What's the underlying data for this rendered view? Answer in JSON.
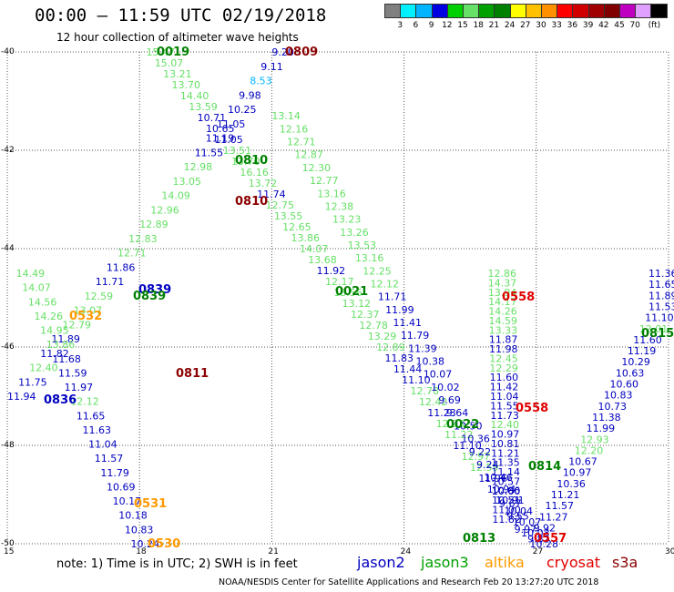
{
  "title": "00:00 – 11:59 UTC 02/19/2018",
  "subtitle": "12 hour collection of altimeter wave heights",
  "legend": {
    "colors": [
      "#808080",
      "#00f0ff",
      "#00b4ff",
      "#0000e0",
      "#00d000",
      "#66e066",
      "#00a000",
      "#008000",
      "#ffff00",
      "#ffc000",
      "#ff9000",
      "#ff0000",
      "#d00000",
      "#a00000",
      "#800000",
      "#c000c0",
      "#e0a0ff",
      "#000000"
    ],
    "labels": [
      "3",
      "6",
      "9",
      "12",
      "15",
      "18",
      "21",
      "24",
      "27",
      "30",
      "33",
      "36",
      "39",
      "42",
      "45",
      "70",
      "(ft)"
    ]
  },
  "axes": {
    "lon_labels": [
      "15",
      "18",
      "21",
      "24",
      "27",
      "30"
    ],
    "lat_labels": [
      "-40",
      "-42",
      "-44",
      "-46",
      "-48",
      "-50"
    ]
  },
  "note": "note: 1) Time is in UTC; 2) SWH is in feet",
  "satellites": [
    {
      "name": "jason2",
      "color": "#0000c0"
    },
    {
      "name": "jason3",
      "color": "#00a000"
    },
    {
      "name": "altika",
      "color": "#ff9900"
    },
    {
      "name": "cryosat",
      "color": "#e00000"
    },
    {
      "name": "s3a",
      "color": "#8b0000"
    }
  ],
  "footer": "NOAA/NESDIS Center for Satellite Applications and Research   Feb 20 13:27:20 UTC 2018",
  "time_labels": [
    {
      "t": "0019",
      "c": "#008000"
    },
    {
      "t": "0809",
      "c": "#8b0000"
    },
    {
      "t": "0810",
      "c": "#008000"
    },
    {
      "t": "0810",
      "c": "#8b0000"
    },
    {
      "t": "0021",
      "c": "#008000"
    },
    {
      "t": "0558",
      "c": "#e00000"
    },
    {
      "t": "0532",
      "c": "#ff9900"
    },
    {
      "t": "0839",
      "c": "#0000c0"
    },
    {
      "t": "0839",
      "c": "#008000"
    },
    {
      "t": "0811",
      "c": "#8b0000"
    },
    {
      "t": "0836",
      "c": "#0000c0"
    },
    {
      "t": "0022",
      "c": "#008000"
    },
    {
      "t": "0558",
      "c": "#e00000"
    },
    {
      "t": "0815",
      "c": "#008000"
    },
    {
      "t": "0814",
      "c": "#008000"
    },
    {
      "t": "0531",
      "c": "#ff9900"
    },
    {
      "t": "0530",
      "c": "#ff9900"
    },
    {
      "t": "0813",
      "c": "#008000"
    },
    {
      "t": "0557",
      "c": "#e00000"
    }
  ],
  "map_data": {
    "lon_range": [
      15,
      30
    ],
    "lat_range": [
      -50,
      -40
    ],
    "tracks": [
      {
        "name": "A",
        "start": [
          18.15,
          -40.0
        ],
        "end": [
          26.85,
          -50.0
        ],
        "values": [
          "15.47",
          "15.07",
          "13.21",
          "13.70",
          "14.40",
          "13.59",
          "10.71",
          "10.65",
          "11.05",
          "13.51",
          "13.70",
          "16.16",
          "13.72",
          "11.74",
          "12.75",
          "13.55",
          "12.65",
          "13.86",
          "14.07",
          "13.68",
          "11.92",
          "12.17",
          "13.56",
          "13.12",
          "12.37",
          "12.78",
          "13.29",
          "12.89",
          "11.83",
          "11.44",
          "11.10",
          "12.78",
          "12.42",
          "11.23",
          "12.23",
          "11.22",
          "11.10",
          "12.97",
          "12.59",
          "11.96",
          "10.94",
          "10.91",
          "10.04",
          "10.07",
          "10.03",
          "10.28"
        ],
        "colors": [
          "#66e066",
          "#66e066",
          "#66e066",
          "#66e066",
          "#66e066",
          "#66e066",
          "#0000c0",
          "#0000c0",
          "#0000c0",
          "#66e066",
          "#66e066",
          "#66e066",
          "#66e066",
          "#0000c0",
          "#66e066",
          "#66e066",
          "#66e066",
          "#66e066",
          "#66e066",
          "#66e066",
          "#0000c0",
          "#66e066",
          "#66e066",
          "#66e066",
          "#66e066",
          "#66e066",
          "#66e066",
          "#66e066",
          "#0000c0",
          "#0000c0",
          "#0000c0",
          "#66e066",
          "#66e066",
          "#0000c0",
          "#66e066",
          "#66e066",
          "#0000c0",
          "#66e066",
          "#66e066",
          "#0000c0",
          "#0000c0",
          "#0000c0",
          "#0000c0",
          "#0000c0",
          "#0000c0",
          "#0000c0"
        ]
      },
      {
        "name": "B",
        "start": [
          21.0,
          -40.0
        ],
        "end": [
          15.0,
          -47.0
        ],
        "values": [
          "9.20",
          "9.11",
          "8.53",
          "9.98",
          "10.25",
          "11.05",
          "11.19",
          "11.55",
          "12.98",
          "13.05",
          "14.09",
          "12.96",
          "12.89",
          "12.83",
          "12.71",
          "11.86",
          "11.71",
          "12.59",
          "13.07",
          "12.79",
          "11.89",
          "11.82",
          "12.40",
          "11.75",
          "11.94"
        ],
        "colors": [
          "#0000c0",
          "#0000c0",
          "#00b4ff",
          "#0000c0",
          "#0000c0",
          "#0000c0",
          "#0000c0",
          "#0000c0",
          "#66e066",
          "#66e066",
          "#66e066",
          "#66e066",
          "#66e066",
          "#66e066",
          "#66e066",
          "#0000c0",
          "#0000c0",
          "#66e066",
          "#66e066",
          "#66e066",
          "#0000c0",
          "#0000c0",
          "#66e066",
          "#0000c0",
          "#0000c0"
        ]
      },
      {
        "name": "C",
        "start": [
          21.0,
          -41.3
        ],
        "end": [
          26.5,
          -49.7
        ],
        "values": [
          "13.14",
          "12.16",
          "12.71",
          "12.87",
          "12.30",
          "12.77",
          "13.16",
          "12.38",
          "13.23",
          "13.26",
          "13.53",
          "13.16",
          "12.25",
          "12.12",
          "11.71",
          "11.99",
          "11.41",
          "11.79",
          "11.39",
          "10.38",
          "10.07",
          "10.02",
          "9.69",
          "9.64",
          "10.50",
          "10.36",
          "9.22",
          "9.24",
          "10.46",
          "10.06",
          "9.67",
          "9.55",
          "9.97"
        ],
        "colors": [
          "#66e066",
          "#66e066",
          "#66e066",
          "#66e066",
          "#66e066",
          "#66e066",
          "#66e066",
          "#66e066",
          "#66e066",
          "#66e066",
          "#66e066",
          "#66e066",
          "#66e066",
          "#66e066",
          "#0000c0",
          "#0000c0",
          "#0000c0",
          "#0000c0",
          "#0000c0",
          "#0000c0",
          "#0000c0",
          "#0000c0",
          "#0000c0",
          "#0000c0",
          "#0000c0",
          "#0000c0",
          "#0000c0",
          "#0000c0",
          "#0000c0",
          "#0000c0",
          "#0000c0",
          "#0000c0",
          "#0000c0"
        ]
      },
      {
        "name": "D",
        "start": [
          25.9,
          -44.5
        ],
        "end": [
          26.0,
          -49.5
        ],
        "values": [
          "12.86",
          "14.37",
          "13.94",
          "14.17",
          "14.26",
          "14.59",
          "13.33",
          "11.87",
          "11.98",
          "12.45",
          "12.29",
          "11.60",
          "11.42",
          "11.04",
          "11.55",
          "11.73",
          "12.40",
          "10.97",
          "10.81",
          "11.21",
          "11.35",
          "11.14",
          "10.57",
          "10.60",
          "10.51",
          "11.00",
          "11.82"
        ],
        "colors": [
          "#66e066",
          "#66e066",
          "#66e066",
          "#66e066",
          "#66e066",
          "#66e066",
          "#66e066",
          "#0000c0",
          "#0000c0",
          "#66e066",
          "#66e066",
          "#0000c0",
          "#0000c0",
          "#0000c0",
          "#0000c0",
          "#0000c0",
          "#66e066",
          "#0000c0",
          "#0000c0",
          "#0000c0",
          "#0000c0",
          "#0000c0",
          "#0000c0",
          "#0000c0",
          "#0000c0",
          "#0000c0",
          "#0000c0"
        ]
      },
      {
        "name": "E",
        "start": [
          30.0,
          -44.5
        ],
        "end": [
          26.8,
          -49.9
        ],
        "values": [
          "11.36",
          "11.65",
          "11.89",
          "11.53",
          "11.10",
          "12.01",
          "11.60",
          "11.19",
          "10.29",
          "10.63",
          "10.60",
          "10.83",
          "10.73",
          "11.38",
          "11.99",
          "12.93",
          "12.20",
          "10.67",
          "10.97",
          "10.36",
          "11.21",
          "11.57",
          "11.27",
          "9.92",
          "9.82"
        ],
        "colors": [
          "#0000c0",
          "#0000c0",
          "#0000c0",
          "#0000c0",
          "#0000c0",
          "#66e066",
          "#0000c0",
          "#0000c0",
          "#0000c0",
          "#0000c0",
          "#0000c0",
          "#0000c0",
          "#0000c0",
          "#0000c0",
          "#0000c0",
          "#66e066",
          "#66e066",
          "#0000c0",
          "#0000c0",
          "#0000c0",
          "#0000c0",
          "#0000c0",
          "#0000c0",
          "#0000c0",
          "#0000c0"
        ]
      },
      {
        "name": "F",
        "start": [
          15.2,
          -44.5
        ],
        "end": [
          17.8,
          -50.0
        ],
        "values": [
          "14.49",
          "14.07",
          "14.56",
          "14.26",
          "14.95",
          "13.86",
          "11.68",
          "11.59",
          "11.97",
          "12.12",
          "11.65",
          "11.63",
          "11.04",
          "11.57",
          "11.79",
          "10.69",
          "10.17",
          "10.18",
          "10.83",
          "10.24"
        ],
        "colors": [
          "#66e066",
          "#66e066",
          "#66e066",
          "#66e066",
          "#66e066",
          "#66e066",
          "#0000c0",
          "#0000c0",
          "#0000c0",
          "#66e066",
          "#0000c0",
          "#0000c0",
          "#0000c0",
          "#0000c0",
          "#0000c0",
          "#0000c0",
          "#0000c0",
          "#0000c0",
          "#0000c0",
          "#0000c0"
        ]
      }
    ]
  }
}
